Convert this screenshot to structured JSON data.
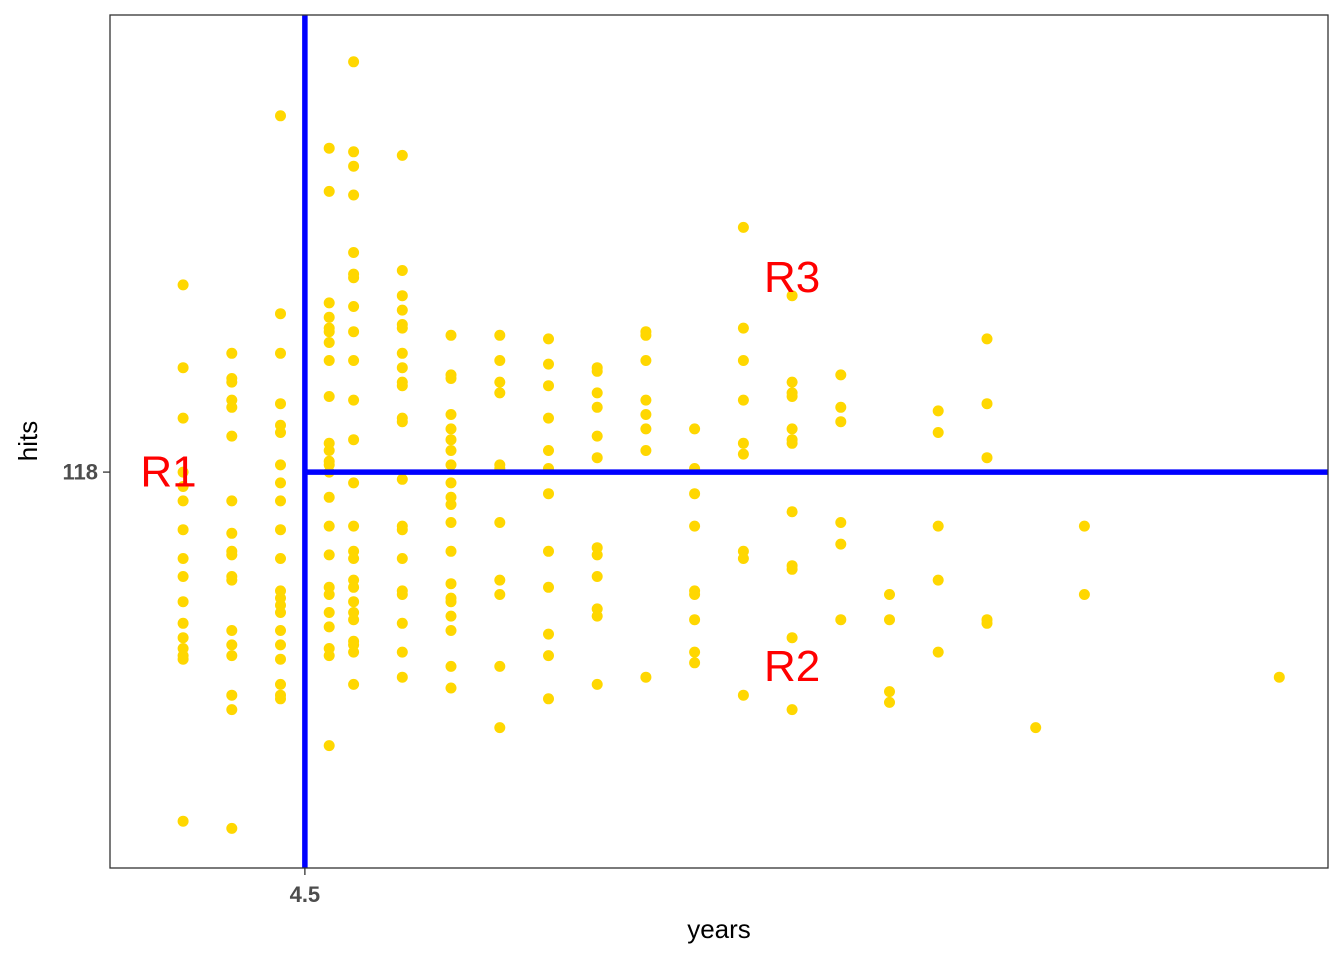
{
  "chart_data": {
    "type": "scatter",
    "title": "",
    "xlabel": "years",
    "ylabel": "hits",
    "xlim": [
      0.5,
      25.5
    ],
    "ylim": [
      8,
      245
    ],
    "x_ticks": [
      4.5
    ],
    "x_tick_labels": [
      "4.5"
    ],
    "y_ticks": [
      118
    ],
    "y_tick_labels": [
      "118"
    ],
    "grid": false,
    "legend": "none",
    "point_color": "#FFD700",
    "split_color": "#0000FF",
    "label_color": "#FF0000",
    "splits": [
      {
        "orientation": "vertical",
        "x": 4.5
      },
      {
        "orientation": "horizontal",
        "y": 118,
        "x_from": 4.5
      }
    ],
    "regions": [
      {
        "label": "R1",
        "x": 1.7,
        "y": 118
      },
      {
        "label": "R2",
        "x": 14.5,
        "y": 64
      },
      {
        "label": "R3",
        "x": 14.5,
        "y": 172
      }
    ],
    "points": [
      [
        2,
        170
      ],
      [
        2,
        147
      ],
      [
        2,
        133
      ],
      [
        2,
        118
      ],
      [
        2,
        114
      ],
      [
        2,
        110
      ],
      [
        2,
        102
      ],
      [
        2,
        94
      ],
      [
        2,
        89
      ],
      [
        2,
        82
      ],
      [
        2,
        76
      ],
      [
        2,
        72
      ],
      [
        2,
        69
      ],
      [
        2,
        67
      ],
      [
        2,
        66
      ],
      [
        2,
        21
      ],
      [
        3,
        151
      ],
      [
        3,
        144
      ],
      [
        3,
        143
      ],
      [
        3,
        138
      ],
      [
        3,
        136
      ],
      [
        3,
        128
      ],
      [
        3,
        110
      ],
      [
        3,
        101
      ],
      [
        3,
        96
      ],
      [
        3,
        95
      ],
      [
        3,
        89
      ],
      [
        3,
        88
      ],
      [
        3,
        74
      ],
      [
        3,
        70
      ],
      [
        3,
        67
      ],
      [
        3,
        56
      ],
      [
        3,
        52
      ],
      [
        3,
        19
      ],
      [
        4,
        217
      ],
      [
        4,
        162
      ],
      [
        4,
        151
      ],
      [
        4,
        137
      ],
      [
        4,
        131
      ],
      [
        4,
        129
      ],
      [
        4,
        120
      ],
      [
        4,
        115
      ],
      [
        4,
        110
      ],
      [
        4,
        102
      ],
      [
        4,
        94
      ],
      [
        4,
        85
      ],
      [
        4,
        83
      ],
      [
        4,
        81
      ],
      [
        4,
        79
      ],
      [
        4,
        74
      ],
      [
        4,
        70
      ],
      [
        4,
        66
      ],
      [
        4,
        59
      ],
      [
        4,
        56
      ],
      [
        4,
        55
      ],
      [
        5,
        208
      ],
      [
        5,
        196
      ],
      [
        5,
        165
      ],
      [
        5,
        161
      ],
      [
        5,
        158
      ],
      [
        5,
        157
      ],
      [
        5,
        154
      ],
      [
        5,
        149
      ],
      [
        5,
        139
      ],
      [
        5,
        126
      ],
      [
        5,
        124
      ],
      [
        5,
        121
      ],
      [
        5,
        120
      ],
      [
        5,
        118
      ],
      [
        5,
        111
      ],
      [
        5,
        103
      ],
      [
        5,
        95
      ],
      [
        5,
        86
      ],
      [
        5,
        84
      ],
      [
        5,
        79
      ],
      [
        5,
        75
      ],
      [
        5,
        69
      ],
      [
        5,
        67
      ],
      [
        5,
        42
      ],
      [
        5.5,
        232
      ],
      [
        5.5,
        207
      ],
      [
        5.5,
        203
      ],
      [
        5.5,
        195
      ],
      [
        5.5,
        179
      ],
      [
        5.5,
        173
      ],
      [
        5.5,
        172
      ],
      [
        5.5,
        164
      ],
      [
        5.5,
        157
      ],
      [
        5.5,
        149
      ],
      [
        5.5,
        138
      ],
      [
        5.5,
        127
      ],
      [
        5.5,
        115
      ],
      [
        5.5,
        103
      ],
      [
        5.5,
        96
      ],
      [
        5.5,
        94
      ],
      [
        5.5,
        88
      ],
      [
        5.5,
        86
      ],
      [
        5.5,
        82
      ],
      [
        5.5,
        79
      ],
      [
        5.5,
        77
      ],
      [
        5.5,
        71
      ],
      [
        5.5,
        70
      ],
      [
        5.5,
        68
      ],
      [
        5.5,
        59
      ],
      [
        6.5,
        206
      ],
      [
        6.5,
        174
      ],
      [
        6.5,
        167
      ],
      [
        6.5,
        163
      ],
      [
        6.5,
        159
      ],
      [
        6.5,
        158
      ],
      [
        6.5,
        151
      ],
      [
        6.5,
        147
      ],
      [
        6.5,
        143
      ],
      [
        6.5,
        142
      ],
      [
        6.5,
        133
      ],
      [
        6.5,
        132
      ],
      [
        6.5,
        116
      ],
      [
        6.5,
        103
      ],
      [
        6.5,
        102
      ],
      [
        6.5,
        94
      ],
      [
        6.5,
        85
      ],
      [
        6.5,
        84
      ],
      [
        6.5,
        76
      ],
      [
        6.5,
        68
      ],
      [
        6.5,
        61
      ],
      [
        7.5,
        156
      ],
      [
        7.5,
        145
      ],
      [
        7.5,
        144
      ],
      [
        7.5,
        134
      ],
      [
        7.5,
        130
      ],
      [
        7.5,
        127
      ],
      [
        7.5,
        124
      ],
      [
        7.5,
        120
      ],
      [
        7.5,
        115
      ],
      [
        7.5,
        111
      ],
      [
        7.5,
        109
      ],
      [
        7.5,
        104
      ],
      [
        7.5,
        96
      ],
      [
        7.5,
        87
      ],
      [
        7.5,
        83
      ],
      [
        7.5,
        82
      ],
      [
        7.5,
        78
      ],
      [
        7.5,
        74
      ],
      [
        7.5,
        64
      ],
      [
        7.5,
        58
      ],
      [
        8.5,
        156
      ],
      [
        8.5,
        149
      ],
      [
        8.5,
        143
      ],
      [
        8.5,
        140
      ],
      [
        8.5,
        120
      ],
      [
        8.5,
        119
      ],
      [
        8.5,
        104
      ],
      [
        8.5,
        88
      ],
      [
        8.5,
        84
      ],
      [
        8.5,
        64
      ],
      [
        8.5,
        47
      ],
      [
        9.5,
        155
      ],
      [
        9.5,
        148
      ],
      [
        9.5,
        142
      ],
      [
        9.5,
        133
      ],
      [
        9.5,
        124
      ],
      [
        9.5,
        119
      ],
      [
        9.5,
        112
      ],
      [
        9.5,
        96
      ],
      [
        9.5,
        86
      ],
      [
        9.5,
        73
      ],
      [
        9.5,
        67
      ],
      [
        9.5,
        55
      ],
      [
        10.5,
        147
      ],
      [
        10.5,
        146
      ],
      [
        10.5,
        140
      ],
      [
        10.5,
        136
      ],
      [
        10.5,
        128
      ],
      [
        10.5,
        122
      ],
      [
        10.5,
        97
      ],
      [
        10.5,
        95
      ],
      [
        10.5,
        89
      ],
      [
        10.5,
        80
      ],
      [
        10.5,
        78
      ],
      [
        10.5,
        59
      ],
      [
        11.5,
        157
      ],
      [
        11.5,
        156
      ],
      [
        11.5,
        149
      ],
      [
        11.5,
        138
      ],
      [
        11.5,
        134
      ],
      [
        11.5,
        130
      ],
      [
        11.5,
        124
      ],
      [
        11.5,
        61
      ],
      [
        12.5,
        130
      ],
      [
        12.5,
        119
      ],
      [
        12.5,
        112
      ],
      [
        12.5,
        103
      ],
      [
        12.5,
        85
      ],
      [
        12.5,
        84
      ],
      [
        12.5,
        77
      ],
      [
        12.5,
        68
      ],
      [
        12.5,
        65
      ],
      [
        13.5,
        186
      ],
      [
        13.5,
        158
      ],
      [
        13.5,
        149
      ],
      [
        13.5,
        138
      ],
      [
        13.5,
        126
      ],
      [
        13.5,
        123
      ],
      [
        13.5,
        96
      ],
      [
        13.5,
        94
      ],
      [
        13.5,
        56
      ],
      [
        14.5,
        167
      ],
      [
        14.5,
        143
      ],
      [
        14.5,
        140
      ],
      [
        14.5,
        139
      ],
      [
        14.5,
        130
      ],
      [
        14.5,
        127
      ],
      [
        14.5,
        126
      ],
      [
        14.5,
        107
      ],
      [
        14.5,
        92
      ],
      [
        14.5,
        91
      ],
      [
        14.5,
        72
      ],
      [
        14.5,
        52
      ],
      [
        15.5,
        145
      ],
      [
        15.5,
        136
      ],
      [
        15.5,
        132
      ],
      [
        15.5,
        104
      ],
      [
        15.5,
        98
      ],
      [
        15.5,
        77
      ],
      [
        16.5,
        84
      ],
      [
        16.5,
        77
      ],
      [
        16.5,
        57
      ],
      [
        16.5,
        54
      ],
      [
        17.5,
        135
      ],
      [
        17.5,
        129
      ],
      [
        17.5,
        103
      ],
      [
        17.5,
        88
      ],
      [
        17.5,
        68
      ],
      [
        18.5,
        155
      ],
      [
        18.5,
        137
      ],
      [
        18.5,
        122
      ],
      [
        18.5,
        77
      ],
      [
        18.5,
        76
      ],
      [
        19.5,
        47
      ],
      [
        20.5,
        103
      ],
      [
        20.5,
        84
      ],
      [
        24.5,
        61
      ]
    ]
  }
}
